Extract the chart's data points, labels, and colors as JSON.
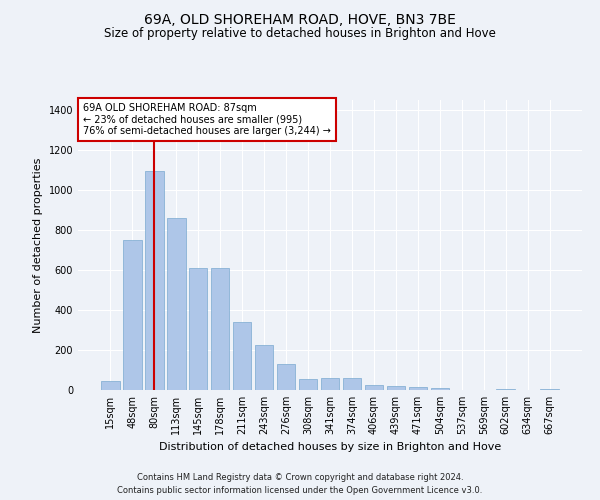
{
  "title1": "69A, OLD SHOREHAM ROAD, HOVE, BN3 7BE",
  "title2": "Size of property relative to detached houses in Brighton and Hove",
  "xlabel": "Distribution of detached houses by size in Brighton and Hove",
  "ylabel": "Number of detached properties",
  "footnote1": "Contains HM Land Registry data © Crown copyright and database right 2024.",
  "footnote2": "Contains public sector information licensed under the Open Government Licence v3.0.",
  "categories": [
    "15sqm",
    "48sqm",
    "80sqm",
    "113sqm",
    "145sqm",
    "178sqm",
    "211sqm",
    "243sqm",
    "276sqm",
    "308sqm",
    "341sqm",
    "374sqm",
    "406sqm",
    "439sqm",
    "471sqm",
    "504sqm",
    "537sqm",
    "569sqm",
    "602sqm",
    "634sqm",
    "667sqm"
  ],
  "values": [
    47,
    750,
    1095,
    860,
    610,
    608,
    340,
    225,
    130,
    57,
    62,
    62,
    27,
    18,
    15,
    8,
    2,
    0,
    5,
    0,
    4
  ],
  "bar_color": "#aec6e8",
  "bar_edge_color": "#7aaad0",
  "highlight_bar_index": 2,
  "highlight_line_color": "#cc0000",
  "highlight_bar_color": "#aec6e8",
  "annotation_text": "69A OLD SHOREHAM ROAD: 87sqm\n← 23% of detached houses are smaller (995)\n76% of semi-detached houses are larger (3,244) →",
  "annotation_box_color": "#cc0000",
  "annotation_text_color": "#000000",
  "ylim": [
    0,
    1450
  ],
  "yticks": [
    0,
    200,
    400,
    600,
    800,
    1000,
    1200,
    1400
  ],
  "background_color": "#eef2f8",
  "grid_color": "#ffffff",
  "title_fontsize": 10,
  "subtitle_fontsize": 8.5,
  "axis_label_fontsize": 8,
  "tick_fontsize": 7,
  "footnote_fontsize": 6,
  "annotation_fontsize": 7
}
